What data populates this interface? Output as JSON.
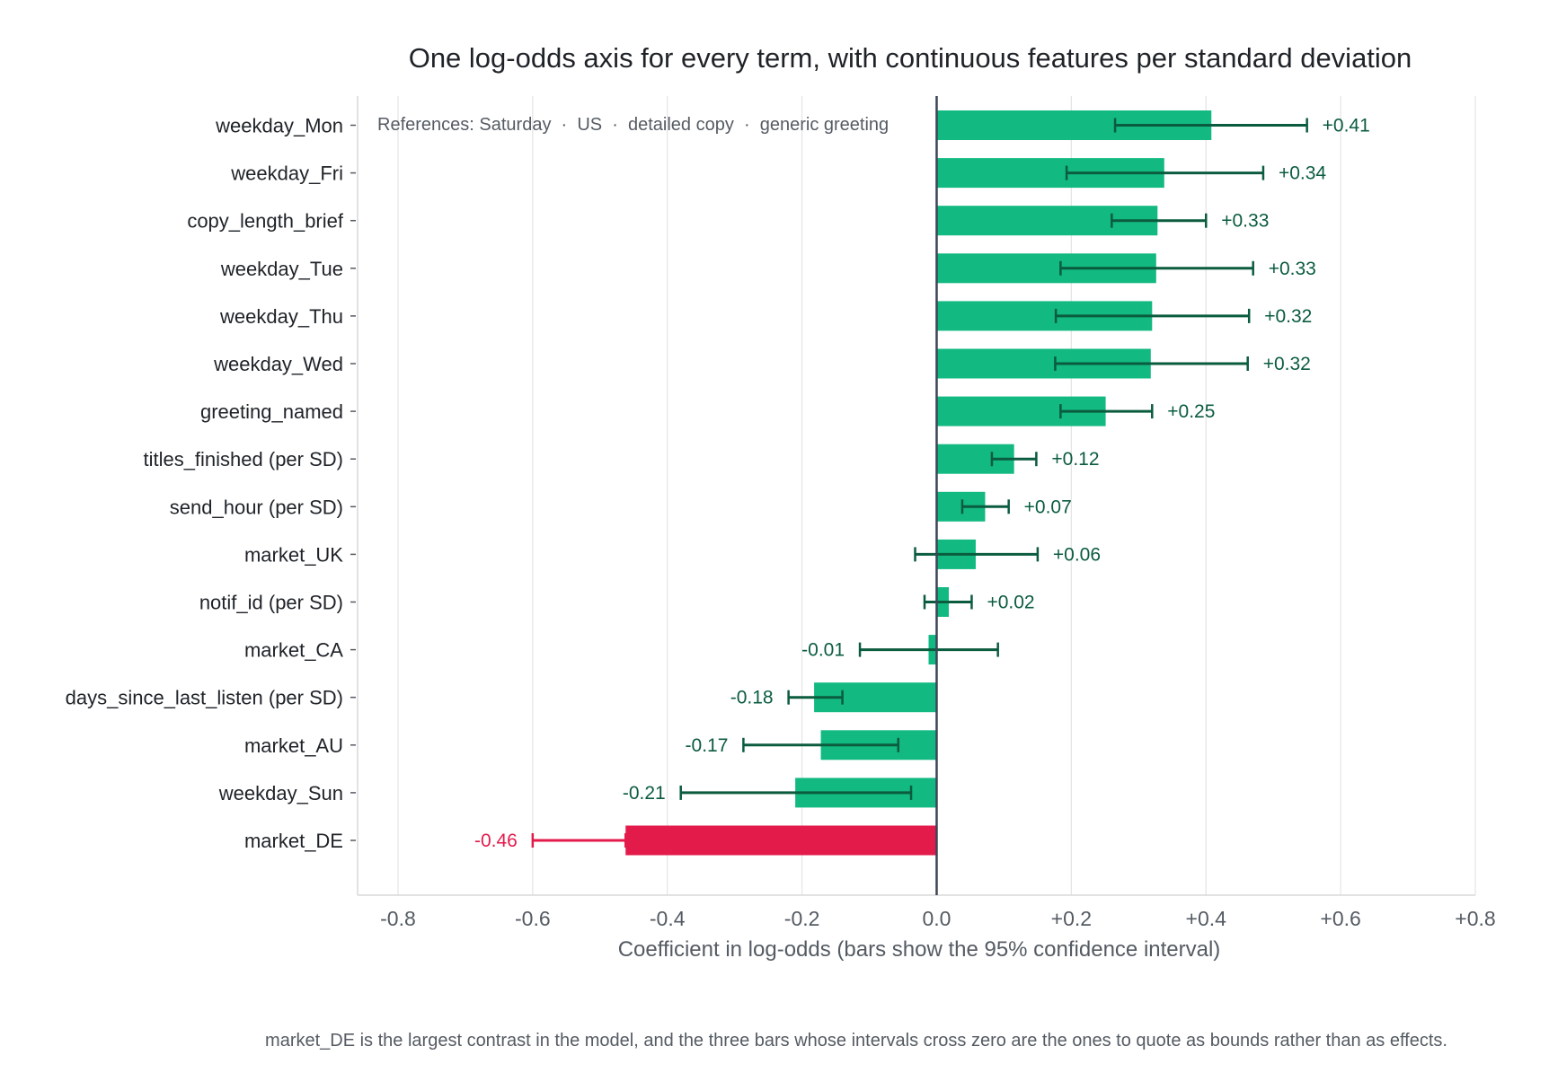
{
  "chart_data": {
    "type": "bar",
    "orientation": "horizontal",
    "title": "One log-odds axis for every term, with continuous features per standard deviation",
    "xlabel": "Coefficient in log-odds (bars show the 95% confidence interval)",
    "ylabel": "",
    "xlim": [
      -0.86,
      0.8
    ],
    "xticks": [
      {
        "value": -0.8,
        "label": "-0.8"
      },
      {
        "value": -0.6,
        "label": "-0.6"
      },
      {
        "value": -0.4,
        "label": "-0.4"
      },
      {
        "value": -0.2,
        "label": "-0.2"
      },
      {
        "value": 0.0,
        "label": "0.0"
      },
      {
        "value": 0.2,
        "label": "+0.2"
      },
      {
        "value": 0.4,
        "label": "+0.4"
      },
      {
        "value": 0.6,
        "label": "+0.6"
      },
      {
        "value": 0.8,
        "label": "+0.8"
      }
    ],
    "grid": "vertical",
    "reference_note": "References: Saturday  ·  US  ·  detailed copy  ·  generic greeting",
    "colors": {
      "positive": "#12b981",
      "highlight_negative": "#e31b4b",
      "interval": "#0b5c3f",
      "zero_line": "#3b4556",
      "grid": "#e4e4e4"
    },
    "terms": [
      {
        "label": "weekday_Mon",
        "value": 0.408,
        "ci": [
          0.265,
          0.55
        ],
        "value_label": "+0.41"
      },
      {
        "label": "weekday_Fri",
        "value": 0.338,
        "ci": [
          0.193,
          0.485
        ],
        "value_label": "+0.34"
      },
      {
        "label": "copy_length_brief",
        "value": 0.328,
        "ci": [
          0.26,
          0.4
        ],
        "value_label": "+0.33"
      },
      {
        "label": "weekday_Tue",
        "value": 0.326,
        "ci": [
          0.184,
          0.47
        ],
        "value_label": "+0.33"
      },
      {
        "label": "weekday_Thu",
        "value": 0.32,
        "ci": [
          0.177,
          0.464
        ],
        "value_label": "+0.32"
      },
      {
        "label": "weekday_Wed",
        "value": 0.318,
        "ci": [
          0.176,
          0.462
        ],
        "value_label": "+0.32"
      },
      {
        "label": "greeting_named",
        "value": 0.251,
        "ci": [
          0.184,
          0.32
        ],
        "value_label": "+0.25"
      },
      {
        "label": "titles_finished  (per SD)",
        "value": 0.115,
        "ci": [
          0.082,
          0.148
        ],
        "value_label": "+0.12"
      },
      {
        "label": "send_hour  (per SD)",
        "value": 0.072,
        "ci": [
          0.038,
          0.107
        ],
        "value_label": "+0.07"
      },
      {
        "label": "market_UK",
        "value": 0.058,
        "ci": [
          -0.032,
          0.15
        ],
        "value_label": "+0.06"
      },
      {
        "label": "notif_id  (per SD)",
        "value": 0.018,
        "ci": [
          -0.018,
          0.052
        ],
        "value_label": "+0.02"
      },
      {
        "label": "market_CA",
        "value": -0.012,
        "ci": [
          -0.114,
          0.091
        ],
        "value_label": "-0.01"
      },
      {
        "label": "days_since_last_listen  (per SD)",
        "value": -0.182,
        "ci": [
          -0.22,
          -0.14
        ],
        "value_label": "-0.18"
      },
      {
        "label": "market_AU",
        "value": -0.172,
        "ci": [
          -0.287,
          -0.057
        ],
        "value_label": "-0.17"
      },
      {
        "label": "weekday_Sun",
        "value": -0.21,
        "ci": [
          -0.38,
          -0.038
        ],
        "value_label": "-0.21"
      },
      {
        "label": "market_DE",
        "value": -0.462,
        "ci": [
          -0.6,
          -0.462
        ],
        "value_label": "-0.46",
        "highlight": true
      }
    ]
  },
  "caption": "market_DE is the largest contrast in the model, and the three bars whose intervals cross zero are the ones to quote as bounds rather than as effects."
}
